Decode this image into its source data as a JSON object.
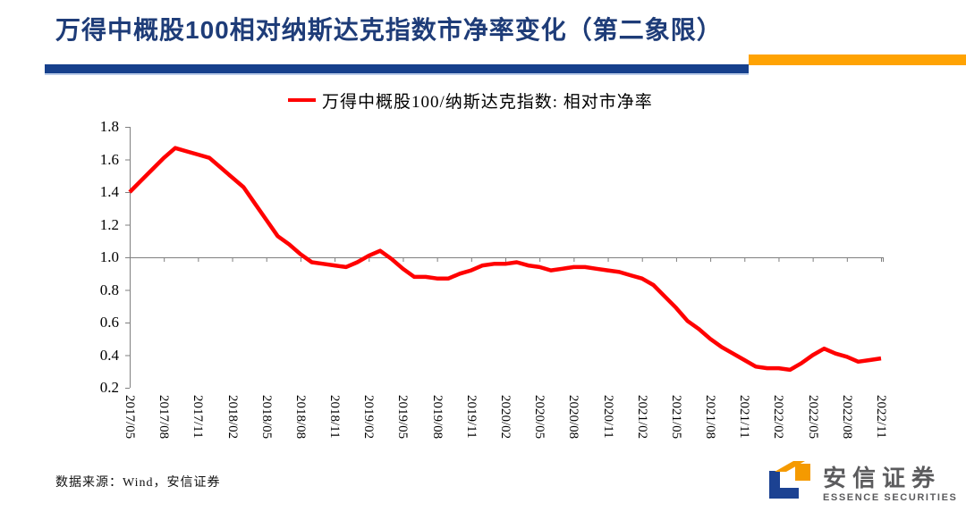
{
  "header": {
    "title": "万得中概股100相对纳斯达克指数市净率变化（第二象限）",
    "title_color": "#1e3c78",
    "underline_blue_color": "#16408c",
    "underline_orange_color": "#ffa303"
  },
  "chart_data": {
    "type": "line",
    "legend": "万得中概股100/纳斯达克指数: 相对市净率",
    "line_color": "#ff0000",
    "axis_color": "#7f7f7f",
    "grid": "single horizontal gridline at y=1.0",
    "legend_position": "top-center",
    "ylim": [
      0.2,
      1.8
    ],
    "baseline_value": 1.0,
    "y_tick_labels": [
      "1.8",
      "1.6",
      "1.4",
      "1.2",
      "1.0",
      "0.8",
      "0.6",
      "0.4",
      "0.2"
    ],
    "x_tick_labels": [
      "2017/05",
      "2017/08",
      "2017/11",
      "2018/02",
      "2018/05",
      "2018/08",
      "2018/11",
      "2019/02",
      "2019/05",
      "2019/08",
      "2019/11",
      "2020/02",
      "2020/05",
      "2020/08",
      "2020/11",
      "2021/02",
      "2021/05",
      "2021/08",
      "2021/11",
      "2022/02",
      "2022/05",
      "2022/08",
      "2022/11"
    ],
    "x": [
      "2017/05",
      "2017/06",
      "2017/07",
      "2017/08",
      "2017/09",
      "2017/10",
      "2017/11",
      "2017/12",
      "2018/01",
      "2018/02",
      "2018/03",
      "2018/04",
      "2018/05",
      "2018/06",
      "2018/07",
      "2018/08",
      "2018/09",
      "2018/10",
      "2018/11",
      "2018/12",
      "2019/01",
      "2019/02",
      "2019/03",
      "2019/04",
      "2019/05",
      "2019/06",
      "2019/07",
      "2019/08",
      "2019/09",
      "2019/10",
      "2019/11",
      "2019/12",
      "2020/01",
      "2020/02",
      "2020/03",
      "2020/04",
      "2020/05",
      "2020/06",
      "2020/07",
      "2020/08",
      "2020/09",
      "2020/10",
      "2020/11",
      "2020/12",
      "2021/01",
      "2021/02",
      "2021/03",
      "2021/04",
      "2021/05",
      "2021/06",
      "2021/07",
      "2021/08",
      "2021/09",
      "2021/10",
      "2021/11",
      "2021/12",
      "2022/01",
      "2022/02",
      "2022/03",
      "2022/04",
      "2022/05",
      "2022/06",
      "2022/07",
      "2022/08",
      "2022/09",
      "2022/10",
      "2022/11"
    ],
    "values": [
      1.4,
      1.47,
      1.54,
      1.61,
      1.67,
      1.65,
      1.63,
      1.61,
      1.55,
      1.49,
      1.43,
      1.33,
      1.23,
      1.13,
      1.08,
      1.02,
      0.97,
      0.96,
      0.95,
      0.94,
      0.97,
      1.01,
      1.04,
      0.99,
      0.93,
      0.88,
      0.88,
      0.87,
      0.87,
      0.9,
      0.92,
      0.95,
      0.96,
      0.96,
      0.97,
      0.95,
      0.94,
      0.92,
      0.93,
      0.94,
      0.94,
      0.93,
      0.92,
      0.91,
      0.89,
      0.87,
      0.83,
      0.76,
      0.69,
      0.61,
      0.56,
      0.5,
      0.45,
      0.41,
      0.37,
      0.33,
      0.32,
      0.32,
      0.31,
      0.35,
      0.4,
      0.44,
      0.41,
      0.39,
      0.36,
      0.37,
      0.38
    ]
  },
  "footer": {
    "source": "数据来源：Wind，安信证券"
  },
  "logo": {
    "name": "安信证券",
    "subtitle": "ESSENCE SECURITIES",
    "text_color": "#5b5b5d",
    "mark_blue": "#1c4292",
    "mark_orange": "#f59a00"
  }
}
